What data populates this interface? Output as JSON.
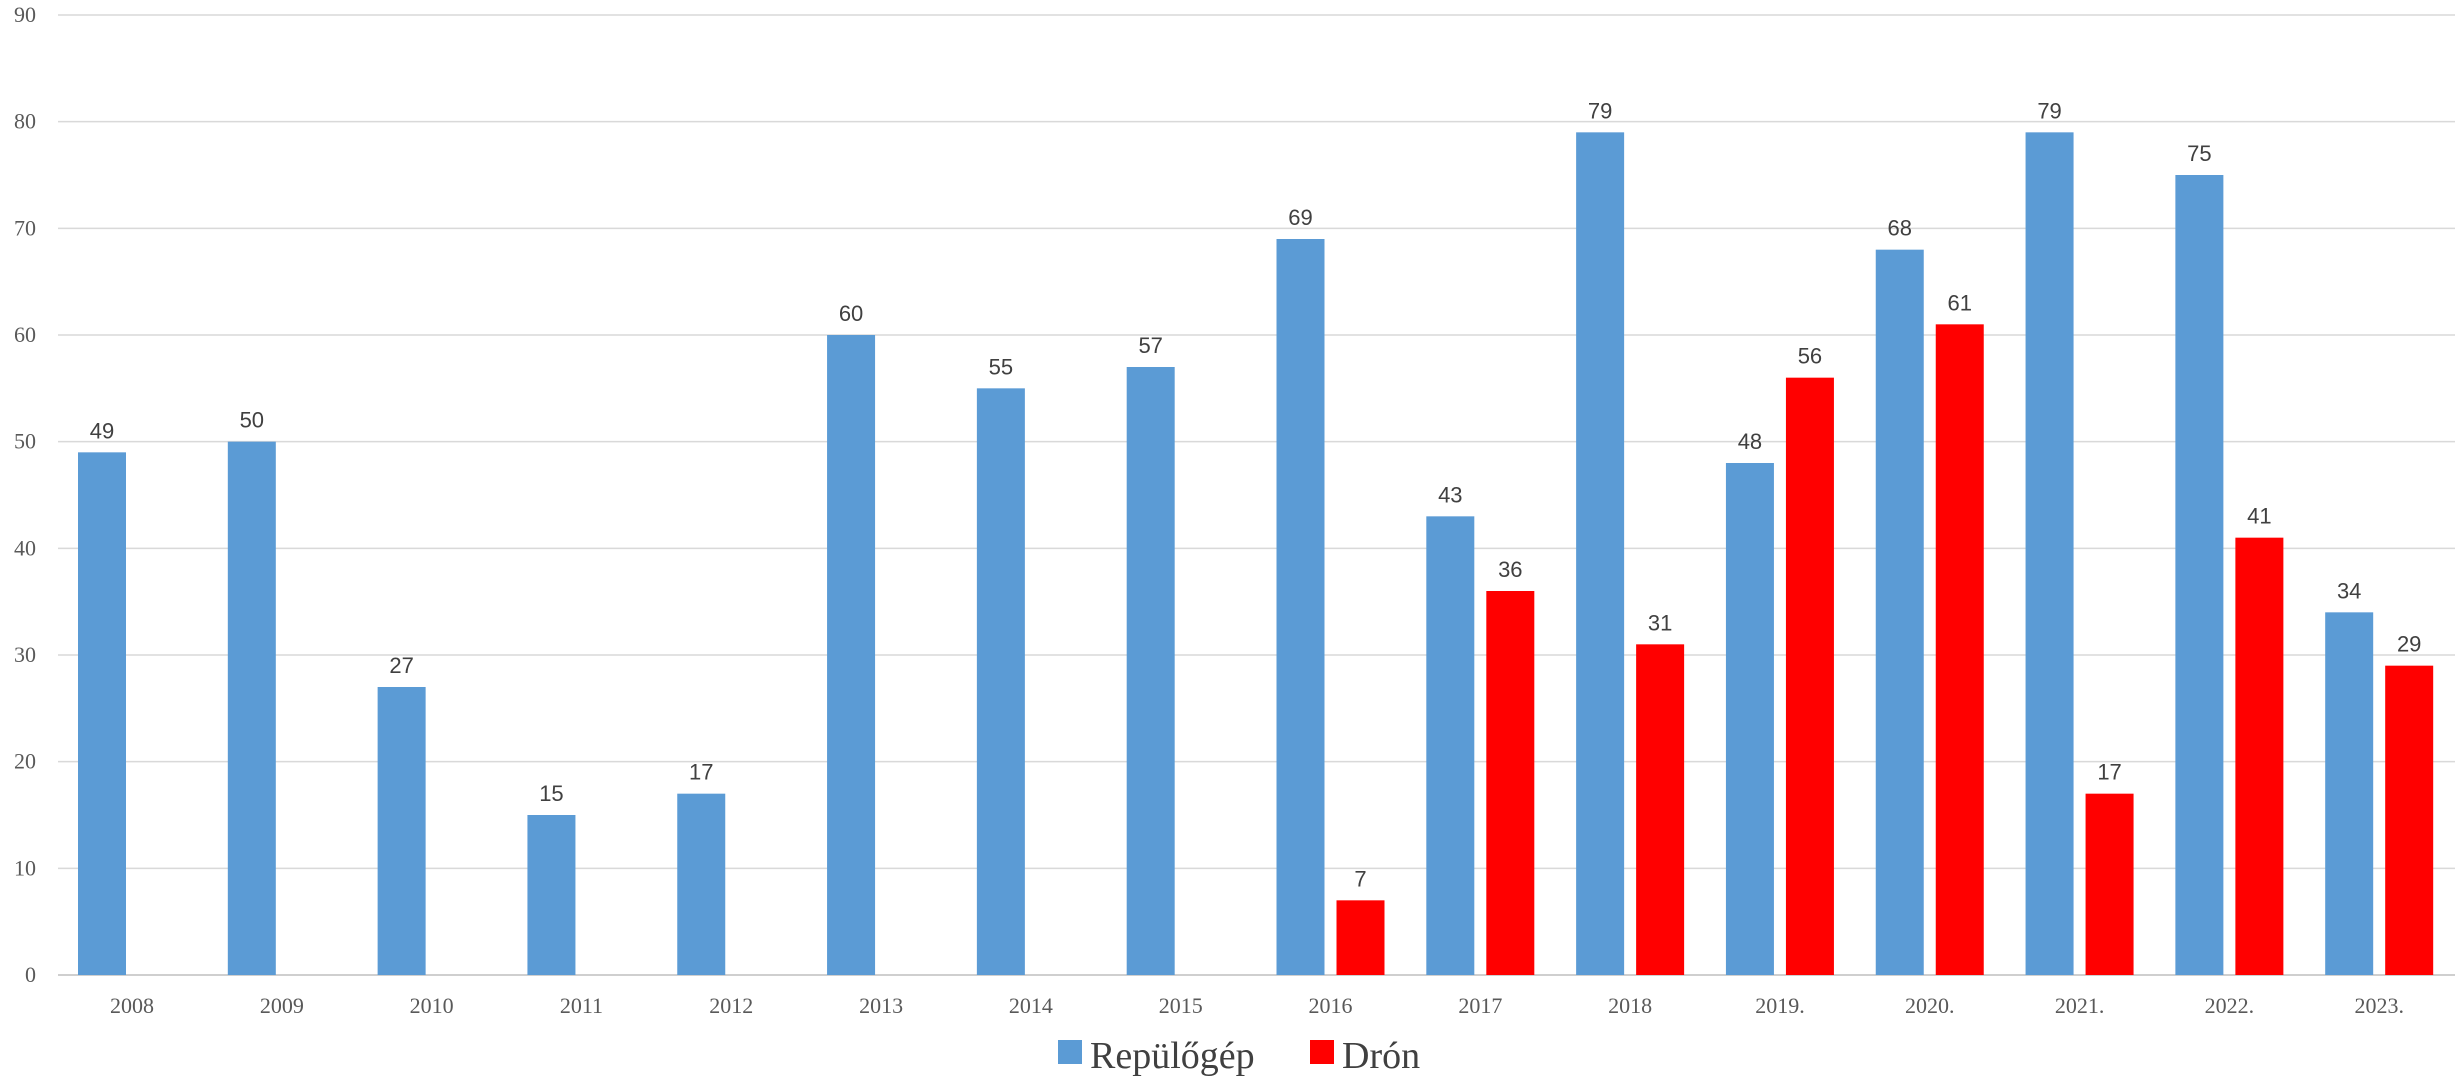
{
  "chart_data": {
    "type": "bar",
    "title": "",
    "xlabel": "",
    "ylabel": "",
    "ylim": [
      0,
      90
    ],
    "yticks": [
      0,
      10,
      20,
      30,
      40,
      50,
      60,
      70,
      80,
      90
    ],
    "grid": true,
    "legend_position": "bottom",
    "data_labels": true,
    "categories": [
      "2008",
      "2009",
      "2010",
      "2011",
      "2012",
      "2013",
      "2014",
      "2015",
      "2016",
      "2017",
      "2018",
      "2019.",
      "2020.",
      "2021.",
      "2022.",
      "2023."
    ],
    "series": [
      {
        "name": "Repülőgép",
        "color": "#5b9bd5",
        "values": [
          49,
          50,
          27,
          15,
          17,
          60,
          55,
          57,
          69,
          43,
          79,
          48,
          68,
          79,
          75,
          34
        ]
      },
      {
        "name": "Drón",
        "color": "#ff0000",
        "values": [
          null,
          null,
          null,
          null,
          null,
          null,
          null,
          null,
          7,
          36,
          31,
          56,
          61,
          17,
          41,
          29
        ]
      }
    ]
  }
}
